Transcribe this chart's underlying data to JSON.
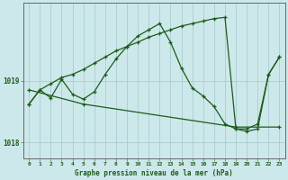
{
  "title": "Graphe pression niveau de la mer (hPa)",
  "background_color": "#cde8ea",
  "grid_color": "#aacdd0",
  "line_color": "#1a5c1a",
  "hours": [
    0,
    1,
    2,
    3,
    4,
    5,
    6,
    7,
    8,
    9,
    10,
    11,
    12,
    13,
    14,
    15,
    16,
    17,
    18,
    19,
    20,
    21,
    22,
    23
  ],
  "series1": [
    1018.62,
    1018.85,
    1018.72,
    1019.02,
    1018.78,
    1018.7,
    1018.82,
    1019.1,
    1019.35,
    1019.55,
    1019.72,
    1019.82,
    1019.92,
    1019.62,
    1019.2,
    1018.88,
    1018.75,
    1018.58,
    1018.3,
    1018.22,
    1018.22,
    1018.3,
    1019.1,
    1019.38
  ],
  "series2": [
    1018.62,
    1018.85,
    1018.95,
    1019.05,
    1019.1,
    1019.18,
    1019.28,
    1019.38,
    1019.48,
    1019.55,
    1019.62,
    1019.7,
    1019.76,
    1019.82,
    1019.88,
    1019.92,
    1019.96,
    1020.0,
    1020.02,
    1018.22,
    1018.18,
    1018.22,
    1019.1,
    1019.38
  ],
  "series3_x": [
    0,
    5,
    19,
    23
  ],
  "series3_y": [
    1018.85,
    1018.62,
    1018.25,
    1018.25
  ],
  "ylim": [
    1017.75,
    1020.25
  ],
  "yticks": [
    1018,
    1019
  ],
  "xlim": [
    -0.5,
    23.5
  ]
}
